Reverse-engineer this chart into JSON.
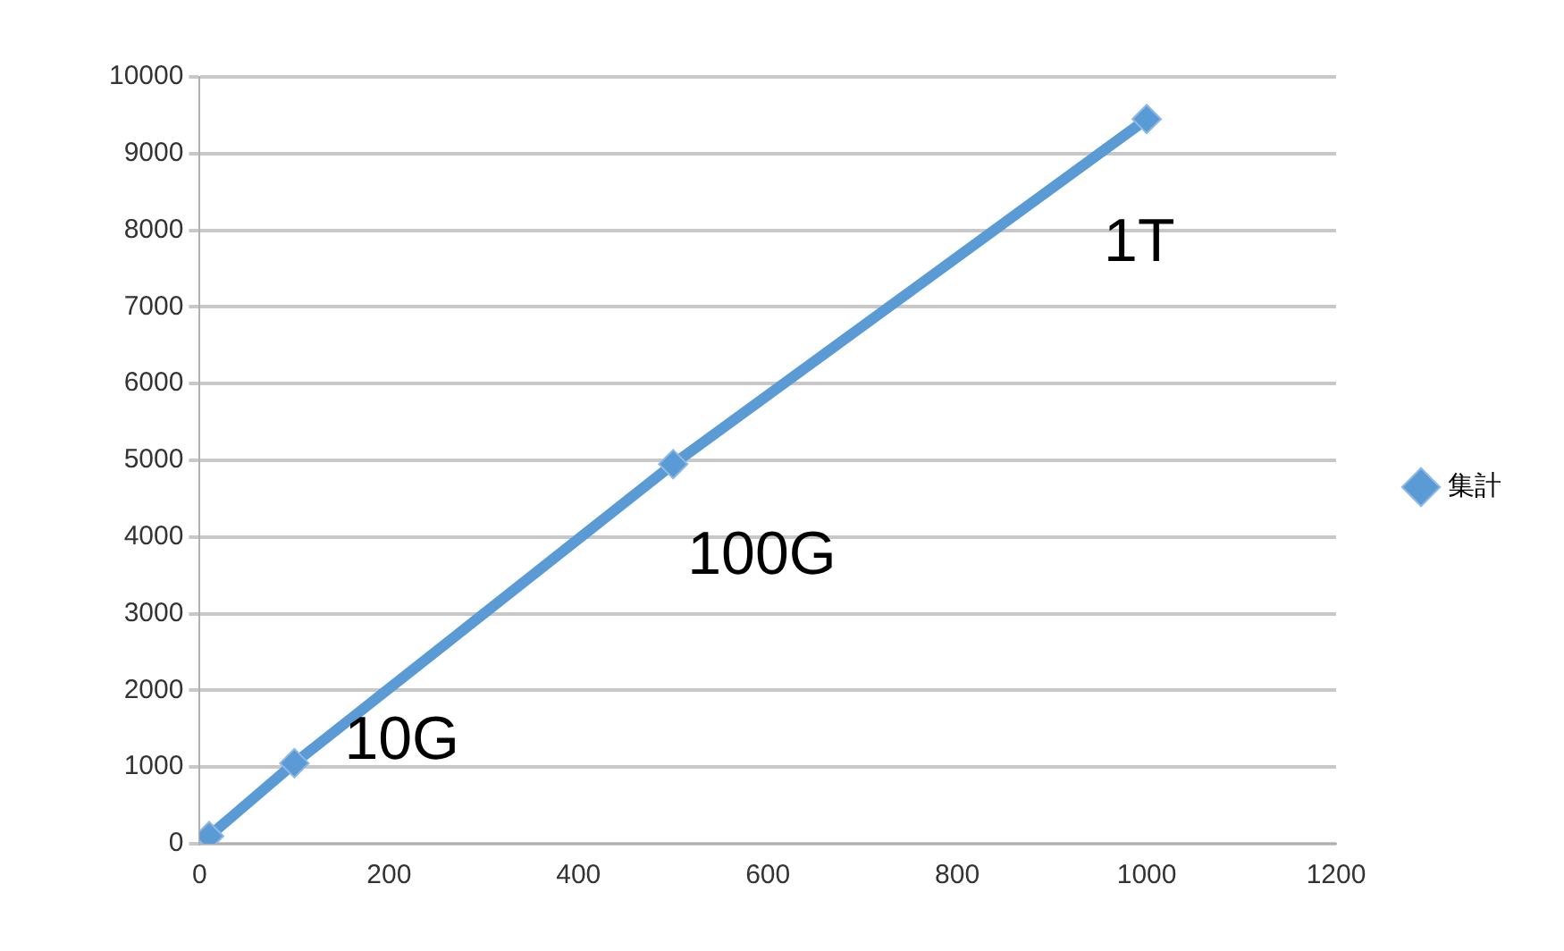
{
  "chart_data": {
    "type": "line",
    "x": [
      10,
      100,
      500,
      1000
    ],
    "series": [
      {
        "name": "集計",
        "color": "#5b9bd5",
        "values": [
          100,
          1050,
          4950,
          9450
        ]
      }
    ],
    "xlim": [
      0,
      1200
    ],
    "xticks": [
      0,
      200,
      400,
      600,
      800,
      1000,
      1200
    ],
    "ylim": [
      0,
      10000
    ],
    "yticks": [
      0,
      1000,
      2000,
      3000,
      4000,
      5000,
      6000,
      7000,
      8000,
      9000,
      10000
    ],
    "grid": "y",
    "legend": "right",
    "marker": "diamond",
    "line_style": "solid",
    "annotations": [
      {
        "text": "10G",
        "x": 100,
        "y": 1050
      },
      {
        "text": "100G",
        "x": 500,
        "y": 4950
      },
      {
        "text": "1T",
        "x": 1000,
        "y": 9450
      }
    ]
  }
}
